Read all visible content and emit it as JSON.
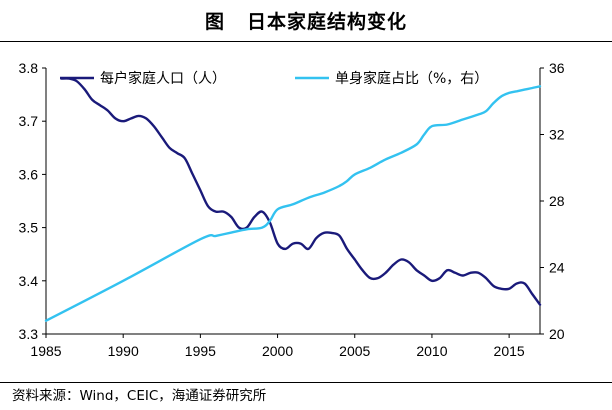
{
  "header": {
    "fig_label": "图",
    "title": "日本家庭结构变化"
  },
  "source": "资料来源：Wind，CEIC，海通证券研究所",
  "colors": {
    "household_size": "#1a1a7a",
    "single_share": "#33c2f0"
  },
  "chart_data": {
    "type": "line",
    "title": "日本家庭结构变化",
    "x_ticks": [
      "1985",
      "1990",
      "1995",
      "2000",
      "2005",
      "2010",
      "2015"
    ],
    "xlim": [
      1985,
      2017
    ],
    "ylim_left": [
      3.3,
      3.8
    ],
    "ylim_right": [
      20,
      36
    ],
    "y_left_ticks": [
      "3.3",
      "3.4",
      "3.5",
      "3.6",
      "3.7",
      "3.8"
    ],
    "y_right_ticks": [
      "20",
      "24",
      "28",
      "32",
      "36"
    ],
    "legend_position": "top",
    "grid": false,
    "series": [
      {
        "name": "每户家庭人口（人）",
        "axis": "left",
        "color": "#1a1a7a",
        "points": [
          [
            1986.0,
            3.78
          ],
          [
            1986.5,
            3.78
          ],
          [
            1987.0,
            3.775
          ],
          [
            1987.5,
            3.76
          ],
          [
            1988.0,
            3.74
          ],
          [
            1988.5,
            3.73
          ],
          [
            1989.0,
            3.72
          ],
          [
            1989.5,
            3.705
          ],
          [
            1990.0,
            3.7
          ],
          [
            1990.5,
            3.705
          ],
          [
            1991.0,
            3.71
          ],
          [
            1991.5,
            3.705
          ],
          [
            1992.0,
            3.69
          ],
          [
            1992.5,
            3.67
          ],
          [
            1993.0,
            3.65
          ],
          [
            1993.5,
            3.64
          ],
          [
            1994.0,
            3.63
          ],
          [
            1994.5,
            3.6
          ],
          [
            1995.0,
            3.57
          ],
          [
            1995.5,
            3.54
          ],
          [
            1996.0,
            3.53
          ],
          [
            1996.5,
            3.53
          ],
          [
            1997.0,
            3.52
          ],
          [
            1997.5,
            3.5
          ],
          [
            1998.0,
            3.5
          ],
          [
            1998.5,
            3.52
          ],
          [
            1999.0,
            3.53
          ],
          [
            1999.5,
            3.51
          ],
          [
            2000.0,
            3.47
          ],
          [
            2000.5,
            3.46
          ],
          [
            2001.0,
            3.47
          ],
          [
            2001.5,
            3.47
          ],
          [
            2002.0,
            3.46
          ],
          [
            2002.5,
            3.48
          ],
          [
            2003.0,
            3.49
          ],
          [
            2003.5,
            3.49
          ],
          [
            2004.0,
            3.485
          ],
          [
            2004.5,
            3.46
          ],
          [
            2005.0,
            3.44
          ],
          [
            2005.5,
            3.42
          ],
          [
            2006.0,
            3.405
          ],
          [
            2006.5,
            3.405
          ],
          [
            2007.0,
            3.415
          ],
          [
            2007.5,
            3.43
          ],
          [
            2008.0,
            3.44
          ],
          [
            2008.5,
            3.435
          ],
          [
            2009.0,
            3.42
          ],
          [
            2009.5,
            3.41
          ],
          [
            2010.0,
            3.4
          ],
          [
            2010.5,
            3.405
          ],
          [
            2011.0,
            3.42
          ],
          [
            2011.5,
            3.415
          ],
          [
            2012.0,
            3.41
          ],
          [
            2012.5,
            3.415
          ],
          [
            2013.0,
            3.415
          ],
          [
            2013.5,
            3.405
          ],
          [
            2014.0,
            3.39
          ],
          [
            2014.5,
            3.385
          ],
          [
            2015.0,
            3.385
          ],
          [
            2015.5,
            3.395
          ],
          [
            2016.0,
            3.395
          ],
          [
            2016.5,
            3.375
          ],
          [
            2017.0,
            3.355
          ]
        ]
      },
      {
        "name": "单身家庭占比（%，右）",
        "axis": "right",
        "color": "#33c2f0",
        "points": [
          [
            1985.0,
            20.8
          ],
          [
            1990.0,
            23.2
          ],
          [
            1995.0,
            25.7
          ],
          [
            1996.0,
            25.9
          ],
          [
            1997.0,
            26.1
          ],
          [
            1998.0,
            26.3
          ],
          [
            1999.0,
            26.4
          ],
          [
            1999.5,
            26.8
          ],
          [
            2000.0,
            27.5
          ],
          [
            2001.0,
            27.8
          ],
          [
            2002.0,
            28.2
          ],
          [
            2003.0,
            28.5
          ],
          [
            2004.0,
            28.9
          ],
          [
            2004.5,
            29.2
          ],
          [
            2005.0,
            29.6
          ],
          [
            2006.0,
            30.0
          ],
          [
            2007.0,
            30.5
          ],
          [
            2008.0,
            30.9
          ],
          [
            2009.0,
            31.4
          ],
          [
            2009.5,
            32.0
          ],
          [
            2010.0,
            32.5
          ],
          [
            2011.0,
            32.6
          ],
          [
            2012.0,
            32.9
          ],
          [
            2013.0,
            33.2
          ],
          [
            2013.5,
            33.4
          ],
          [
            2014.0,
            33.9
          ],
          [
            2014.5,
            34.3
          ],
          [
            2015.0,
            34.5
          ],
          [
            2015.5,
            34.6
          ],
          [
            2016.0,
            34.7
          ],
          [
            2016.5,
            34.8
          ],
          [
            2017.0,
            34.9
          ]
        ]
      }
    ]
  }
}
